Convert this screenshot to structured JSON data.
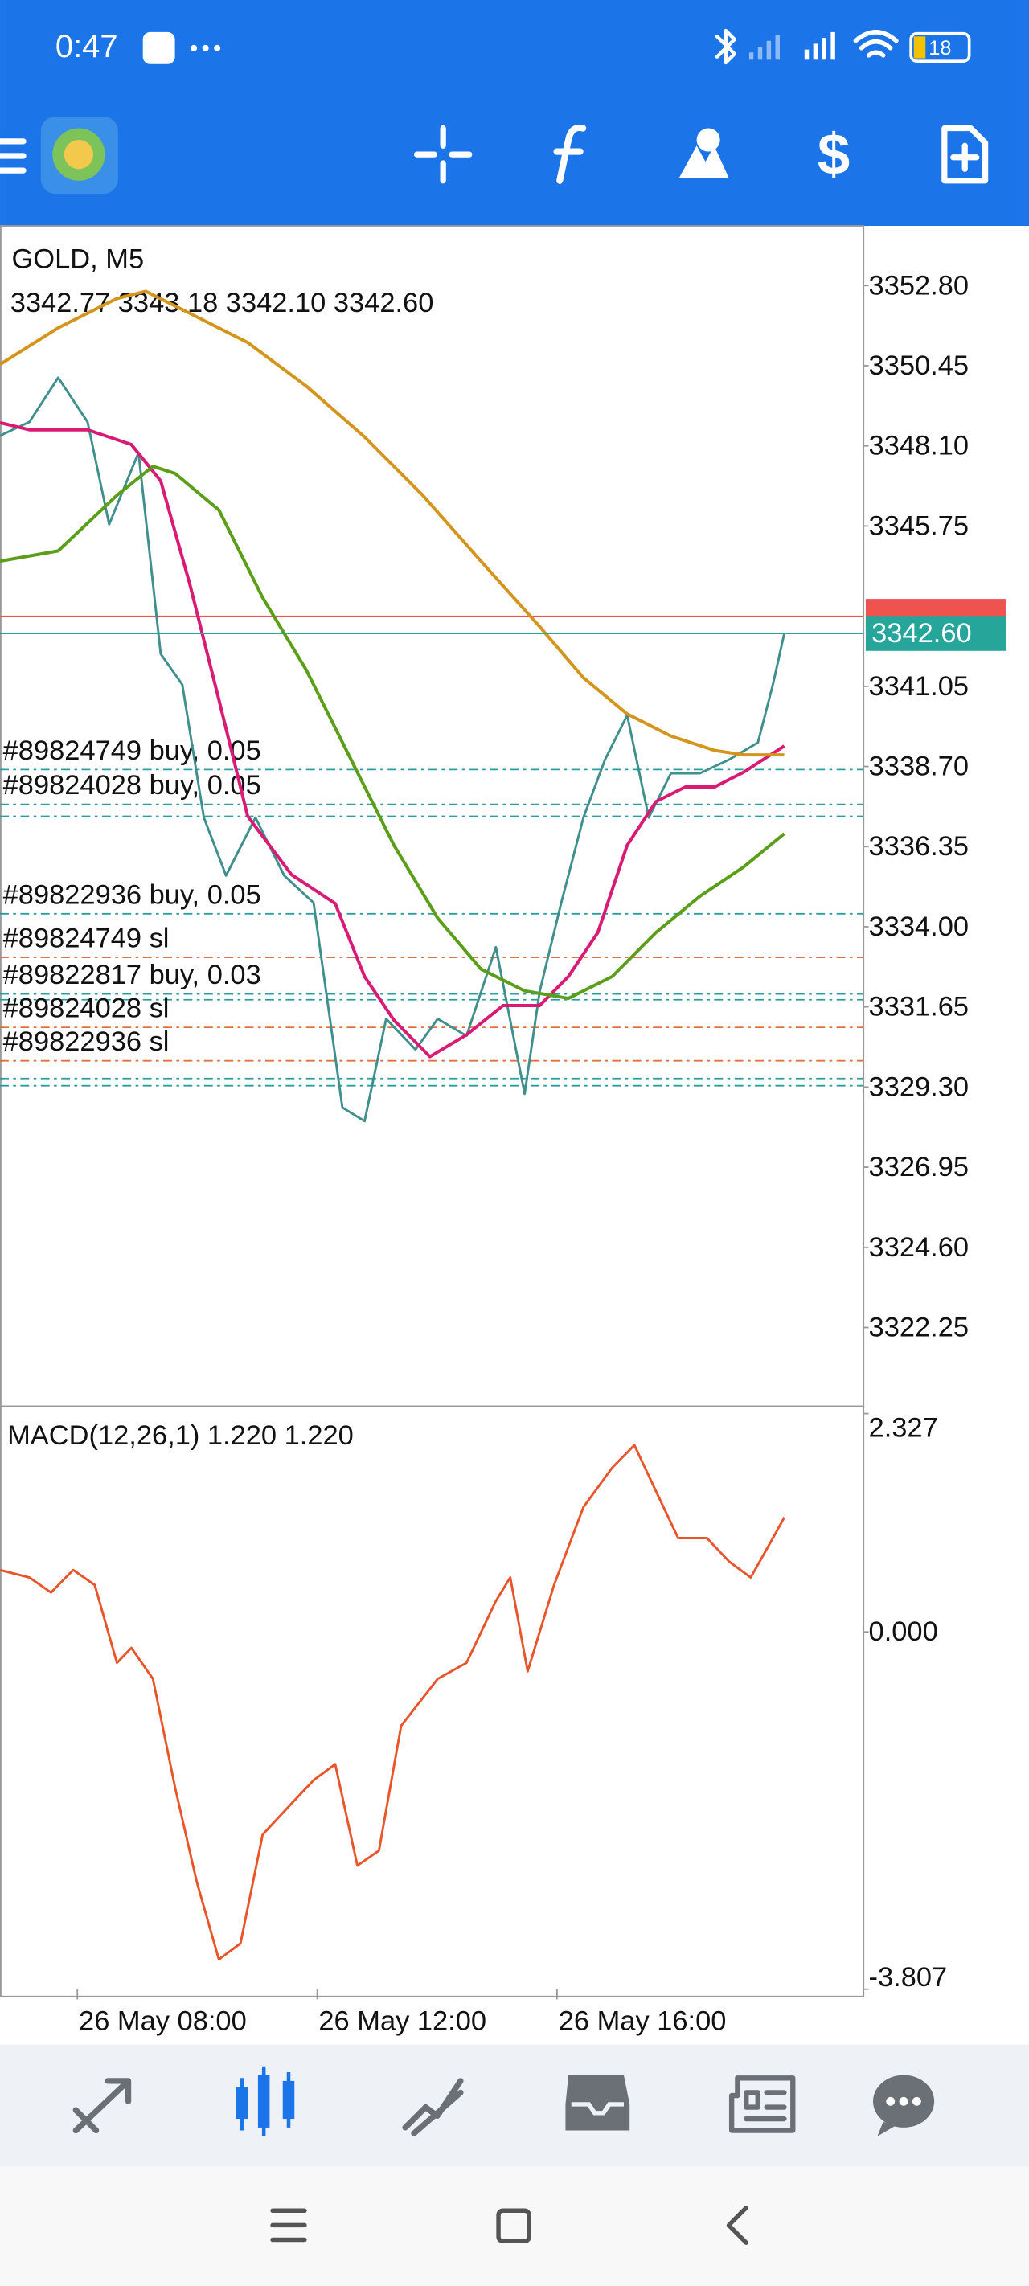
{
  "status_bar": {
    "time": "0:47",
    "battery": "18"
  },
  "chart_data": [
    {
      "type": "line",
      "title": "GOLD, M5",
      "subtitle": "3342.77 3343.18 3342.10 3342.60",
      "xlim": [
        6.71,
        21.1
      ],
      "xticks": [
        {
          "value": 8,
          "label": "26 May 08:00"
        },
        {
          "value": 12,
          "label": "26 May 12:00"
        },
        {
          "value": 16,
          "label": "26 May 16:00"
        }
      ],
      "ylim": [
        3319.94,
        3354.55
      ],
      "yticks": [
        {
          "value": 3352.8,
          "label": "3352.80"
        },
        {
          "value": 3350.45,
          "label": "3350.45"
        },
        {
          "value": 3348.1,
          "label": "3348.10"
        },
        {
          "value": 3345.75,
          "label": "3345.75"
        },
        {
          "value": 3341.05,
          "label": "3341.05"
        },
        {
          "value": 3338.7,
          "label": "3338.70"
        },
        {
          "value": 3336.35,
          "label": "3336.35"
        },
        {
          "value": 3334,
          "label": "3334.00"
        },
        {
          "value": 3331.65,
          "label": "3331.65"
        },
        {
          "value": 3329.3,
          "label": "3329.30"
        },
        {
          "value": 3326.95,
          "label": "3326.95"
        },
        {
          "value": 3324.6,
          "label": "3324.60"
        },
        {
          "value": 3322.25,
          "label": "3322.25"
        }
      ],
      "series": [
        {
          "color": "#3f8f8c",
          "x": [
            6.71,
            7.2,
            7.68,
            8.17,
            8.53,
            9.02,
            9.39,
            9.75,
            10.11,
            10.48,
            10.97,
            11.45,
            11.94,
            12.42,
            12.79,
            13.15,
            13.64,
            14.01,
            14.49,
            14.98,
            15.46,
            15.71,
            16.07,
            16.44,
            16.8,
            17.17,
            17.53,
            17.9,
            18.38,
            18.87,
            19.35,
            19.6,
            19.79
          ],
          "values": [
            3348.4,
            3348.8,
            3350.1,
            3348.8,
            3345.8,
            3347.9,
            3342.0,
            3341.1,
            3337.2,
            3335.5,
            3337.2,
            3335.5,
            3334.7,
            3328.7,
            3328.3,
            3331.3,
            3330.4,
            3331.3,
            3330.8,
            3333.4,
            3329.1,
            3332.1,
            3334.7,
            3337.2,
            3338.9,
            3340.2,
            3337.2,
            3338.5,
            3338.5,
            3338.9,
            3339.4,
            3341.1,
            3342.6
          ]
        },
        {
          "color": "#d81b74",
          "x": [
            6.71,
            7.2,
            8.17,
            8.9,
            9.39,
            9.87,
            10.36,
            10.84,
            11.57,
            12.3,
            12.79,
            13.28,
            13.88,
            14.49,
            15.1,
            15.71,
            16.19,
            16.68,
            17.17,
            17.65,
            18.14,
            18.63,
            19.11,
            19.79
          ],
          "values": [
            3348.78,
            3348.57,
            3348.57,
            3348.14,
            3347.07,
            3344.08,
            3340.66,
            3337.24,
            3335.53,
            3334.68,
            3332.54,
            3331.26,
            3330.19,
            3330.83,
            3331.69,
            3331.69,
            3332.54,
            3333.83,
            3336.39,
            3337.67,
            3338.1,
            3338.1,
            3338.53,
            3339.3
          ]
        },
        {
          "color": "#5a9e1a",
          "x": [
            6.71,
            7.68,
            8.66,
            9.26,
            9.63,
            10.36,
            11.09,
            11.82,
            12.55,
            13.28,
            14.01,
            14.73,
            15.46,
            16.19,
            16.92,
            17.65,
            18.38,
            19.11,
            19.79
          ],
          "values": [
            3344.72,
            3345.02,
            3346.65,
            3347.5,
            3347.29,
            3346.22,
            3343.65,
            3341.52,
            3338.95,
            3336.39,
            3334.25,
            3332.76,
            3332.12,
            3331.9,
            3332.54,
            3333.83,
            3334.89,
            3335.75,
            3336.73
          ]
        },
        {
          "color": "#d4951e",
          "x": [
            6.71,
            7.68,
            8.66,
            9.14,
            9.87,
            10.84,
            11.82,
            12.79,
            13.76,
            14.73,
            15.71,
            16.44,
            17.17,
            17.9,
            18.63,
            19.11,
            19.79
          ],
          "values": [
            3350.49,
            3351.56,
            3352.42,
            3352.63,
            3351.99,
            3351.13,
            3349.85,
            3348.36,
            3346.65,
            3344.72,
            3342.8,
            3341.3,
            3340.24,
            3339.59,
            3339.17,
            3339.04,
            3339.04
          ]
        }
      ],
      "bid": {
        "value": 3342.6,
        "label": "3342.60",
        "color": "#26a69a"
      },
      "ask": {
        "value": 3343.1,
        "color": "#ef5350"
      },
      "orders": [
        {
          "label": "#89824749 buy, 0.05",
          "price": 3338.61,
          "color": "#2a9d9d"
        },
        {
          "label": "#89824028 buy, 0.05",
          "price": 3337.59,
          "color": "#2a9d9d"
        },
        {
          "price": 3337.24,
          "color": "#2a9d9d"
        },
        {
          "label": "#89822936 buy, 0.05",
          "price": 3334.38,
          "color": "#2a9d9d"
        },
        {
          "label": "#89824749 sl",
          "price": 3333.1,
          "color": "#e07040"
        },
        {
          "label": "#89822817 buy, 0.03",
          "price": 3332.03,
          "color": "#2a9d9d"
        },
        {
          "price": 3331.86,
          "color": "#2a9d9d"
        },
        {
          "label": "#89824028 sl",
          "price": 3331.05,
          "color": "#e07040"
        },
        {
          "label": "#89822936 sl",
          "price": 3330.07,
          "color": "#e07040"
        },
        {
          "price": 3329.55,
          "color": "#2a9d9d"
        },
        {
          "price": 3329.34,
          "color": "#2a9d9d"
        }
      ]
    },
    {
      "type": "line",
      "title": "MACD(12,26,1) 1.220 1.220",
      "xlim": [
        6.71,
        21.1
      ],
      "ylim": [
        -3.807,
        2.327
      ],
      "yticks": [
        2.327,
        {
          "value": 0,
          "label": "0.000"
        },
        -3.807
      ],
      "series": [
        {
          "color": "#e8552b",
          "x": [
            6.71,
            7.2,
            7.56,
            7.93,
            8.29,
            8.66,
            8.9,
            9.26,
            9.63,
            9.99,
            10.36,
            10.72,
            11.09,
            11.57,
            11.94,
            12.3,
            12.67,
            13.03,
            13.4,
            14.01,
            14.49,
            14.98,
            15.22,
            15.51,
            15.95,
            16.44,
            16.92,
            17.29,
            17.65,
            18.02,
            18.5,
            18.87,
            19.23,
            19.6,
            19.79
          ],
          "values": [
            0.66,
            0.58,
            0.42,
            0.66,
            0.5,
            -0.33,
            -0.17,
            -0.5,
            -1.66,
            -2.66,
            -3.49,
            -3.32,
            -2.16,
            -1.83,
            -1.58,
            -1.41,
            -2.49,
            -2.33,
            -1.0,
            -0.5,
            -0.33,
            0.33,
            0.58,
            -0.42,
            0.5,
            1.33,
            1.75,
            1.99,
            1.5,
            1.0,
            1.0,
            0.75,
            0.58,
            1.0,
            1.22
          ]
        }
      ]
    }
  ]
}
